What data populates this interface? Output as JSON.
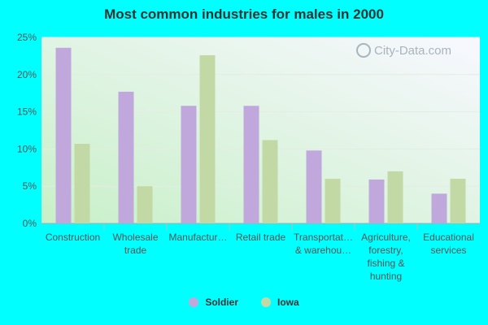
{
  "chart_data": {
    "type": "bar",
    "title": "Most common industries for males in 2000",
    "categories": [
      [
        "Construction"
      ],
      [
        "Wholesale",
        "trade"
      ],
      [
        "Manufactur…"
      ],
      [
        "Retail trade"
      ],
      [
        "Transportat…",
        "& warehou…"
      ],
      [
        "Agriculture,",
        "forestry,",
        "fishing &",
        "hunting"
      ],
      [
        "Educational",
        "services"
      ]
    ],
    "series": [
      {
        "name": "Soldier",
        "color": "#c0a8dc",
        "values": [
          23.6,
          17.7,
          15.8,
          15.8,
          9.8,
          5.9,
          4.0
        ]
      },
      {
        "name": "Iowa",
        "color": "#c3d9a5",
        "values": [
          10.7,
          5.0,
          22.6,
          11.2,
          6.0,
          7.0,
          6.0
        ]
      }
    ],
    "yticks": [
      "0%",
      "5%",
      "10%",
      "15%",
      "20%",
      "25%"
    ],
    "ylim": [
      0,
      25
    ],
    "xlabel": "",
    "ylabel": "",
    "legend_position": "bottom"
  },
  "watermark": "City-Data.com"
}
